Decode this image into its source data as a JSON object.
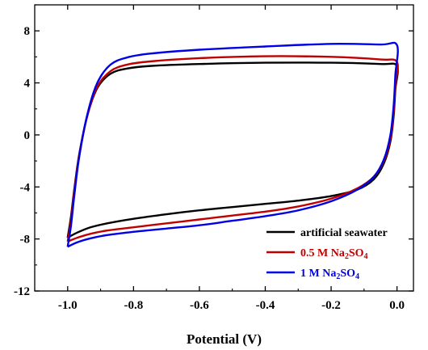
{
  "chart_data": {
    "type": "line",
    "title": "",
    "xlabel": "Potential (V)",
    "ylabel": "",
    "xlim": [
      -1.1,
      0.05
    ],
    "ylim": [
      -12,
      10
    ],
    "xticks": [
      -1.0,
      -0.8,
      -0.6,
      -0.4,
      -0.2,
      0.0
    ],
    "xtick_labels": [
      "-1.0",
      "-0.8",
      "-0.6",
      "-0.4",
      "-0.2",
      "0.0"
    ],
    "yticks": [
      -12,
      -8,
      -4,
      0,
      4,
      8
    ],
    "ytick_labels": [
      "-12",
      "-8",
      "-4",
      "0",
      "4",
      "8"
    ],
    "grid": false,
    "legend_position": "bottom-right",
    "series": [
      {
        "name": "artificial seawater",
        "legend_main": "artificial seawater",
        "legend_parts": [
          {
            "t": "artificial seawater",
            "sub": false
          }
        ],
        "color": "#000000",
        "points": [
          [
            -1.0,
            -7.9
          ],
          [
            -0.97,
            -7.5
          ],
          [
            -0.93,
            -7.1
          ],
          [
            -0.88,
            -6.8
          ],
          [
            -0.8,
            -6.45
          ],
          [
            -0.7,
            -6.1
          ],
          [
            -0.6,
            -5.8
          ],
          [
            -0.5,
            -5.55
          ],
          [
            -0.4,
            -5.3
          ],
          [
            -0.3,
            -5.05
          ],
          [
            -0.2,
            -4.7
          ],
          [
            -0.12,
            -4.2
          ],
          [
            -0.07,
            -3.4
          ],
          [
            -0.04,
            -2.2
          ],
          [
            -0.02,
            -0.5
          ],
          [
            -0.01,
            1.5
          ],
          [
            -0.005,
            3.5
          ],
          [
            0.0,
            5.3
          ],
          [
            -0.05,
            5.45
          ],
          [
            -0.2,
            5.55
          ],
          [
            -0.4,
            5.55
          ],
          [
            -0.6,
            5.45
          ],
          [
            -0.75,
            5.3
          ],
          [
            -0.82,
            5.1
          ],
          [
            -0.87,
            4.7
          ],
          [
            -0.91,
            3.6
          ],
          [
            -0.94,
            1.5
          ],
          [
            -0.965,
            -1.5
          ],
          [
            -0.98,
            -4.2
          ],
          [
            -0.99,
            -6.3
          ],
          [
            -1.0,
            -7.9
          ]
        ]
      },
      {
        "name": "0.5 M Na2SO4",
        "legend_main": "0.5 M Na",
        "legend_parts": [
          {
            "t": "0.5 M Na",
            "sub": false
          },
          {
            "t": "2",
            "sub": true
          },
          {
            "t": "SO",
            "sub": false
          },
          {
            "t": "4",
            "sub": true
          }
        ],
        "color": "#c00000",
        "points": [
          [
            -1.0,
            -8.2
          ],
          [
            -0.97,
            -7.9
          ],
          [
            -0.93,
            -7.6
          ],
          [
            -0.88,
            -7.35
          ],
          [
            -0.8,
            -7.1
          ],
          [
            -0.7,
            -6.8
          ],
          [
            -0.6,
            -6.5
          ],
          [
            -0.5,
            -6.2
          ],
          [
            -0.4,
            -5.9
          ],
          [
            -0.3,
            -5.5
          ],
          [
            -0.2,
            -4.9
          ],
          [
            -0.12,
            -4.1
          ],
          [
            -0.07,
            -3.2
          ],
          [
            -0.04,
            -2.0
          ],
          [
            -0.02,
            -0.3
          ],
          [
            -0.01,
            1.8
          ],
          [
            -0.005,
            3.8
          ],
          [
            0.0,
            5.6
          ],
          [
            -0.05,
            5.8
          ],
          [
            -0.2,
            6.0
          ],
          [
            -0.4,
            6.05
          ],
          [
            -0.6,
            5.9
          ],
          [
            -0.75,
            5.65
          ],
          [
            -0.82,
            5.4
          ],
          [
            -0.87,
            4.9
          ],
          [
            -0.91,
            3.7
          ],
          [
            -0.94,
            1.5
          ],
          [
            -0.965,
            -1.6
          ],
          [
            -0.98,
            -4.4
          ],
          [
            -0.99,
            -6.6
          ],
          [
            -1.0,
            -8.2
          ]
        ]
      },
      {
        "name": "1 M Na2SO4",
        "legend_main": "1 M Na",
        "legend_parts": [
          {
            "t": "1 M Na",
            "sub": false
          },
          {
            "t": "2",
            "sub": true
          },
          {
            "t": "SO",
            "sub": false
          },
          {
            "t": "4",
            "sub": true
          }
        ],
        "color": "#0000e6",
        "points": [
          [
            -1.0,
            -8.6
          ],
          [
            -0.97,
            -8.25
          ],
          [
            -0.93,
            -7.95
          ],
          [
            -0.88,
            -7.7
          ],
          [
            -0.8,
            -7.45
          ],
          [
            -0.7,
            -7.2
          ],
          [
            -0.6,
            -6.95
          ],
          [
            -0.5,
            -6.6
          ],
          [
            -0.4,
            -6.25
          ],
          [
            -0.3,
            -5.8
          ],
          [
            -0.2,
            -5.1
          ],
          [
            -0.12,
            -4.2
          ],
          [
            -0.07,
            -3.2
          ],
          [
            -0.04,
            -1.9
          ],
          [
            -0.02,
            0.0
          ],
          [
            -0.01,
            2.3
          ],
          [
            -0.005,
            4.6
          ],
          [
            0.0,
            6.9
          ],
          [
            -0.05,
            6.95
          ],
          [
            -0.2,
            7.0
          ],
          [
            -0.4,
            6.8
          ],
          [
            -0.6,
            6.55
          ],
          [
            -0.75,
            6.25
          ],
          [
            -0.82,
            5.95
          ],
          [
            -0.87,
            5.4
          ],
          [
            -0.91,
            4.0
          ],
          [
            -0.94,
            1.6
          ],
          [
            -0.965,
            -1.7
          ],
          [
            -0.98,
            -4.7
          ],
          [
            -0.99,
            -7.0
          ],
          [
            -1.0,
            -8.6
          ]
        ]
      }
    ]
  }
}
